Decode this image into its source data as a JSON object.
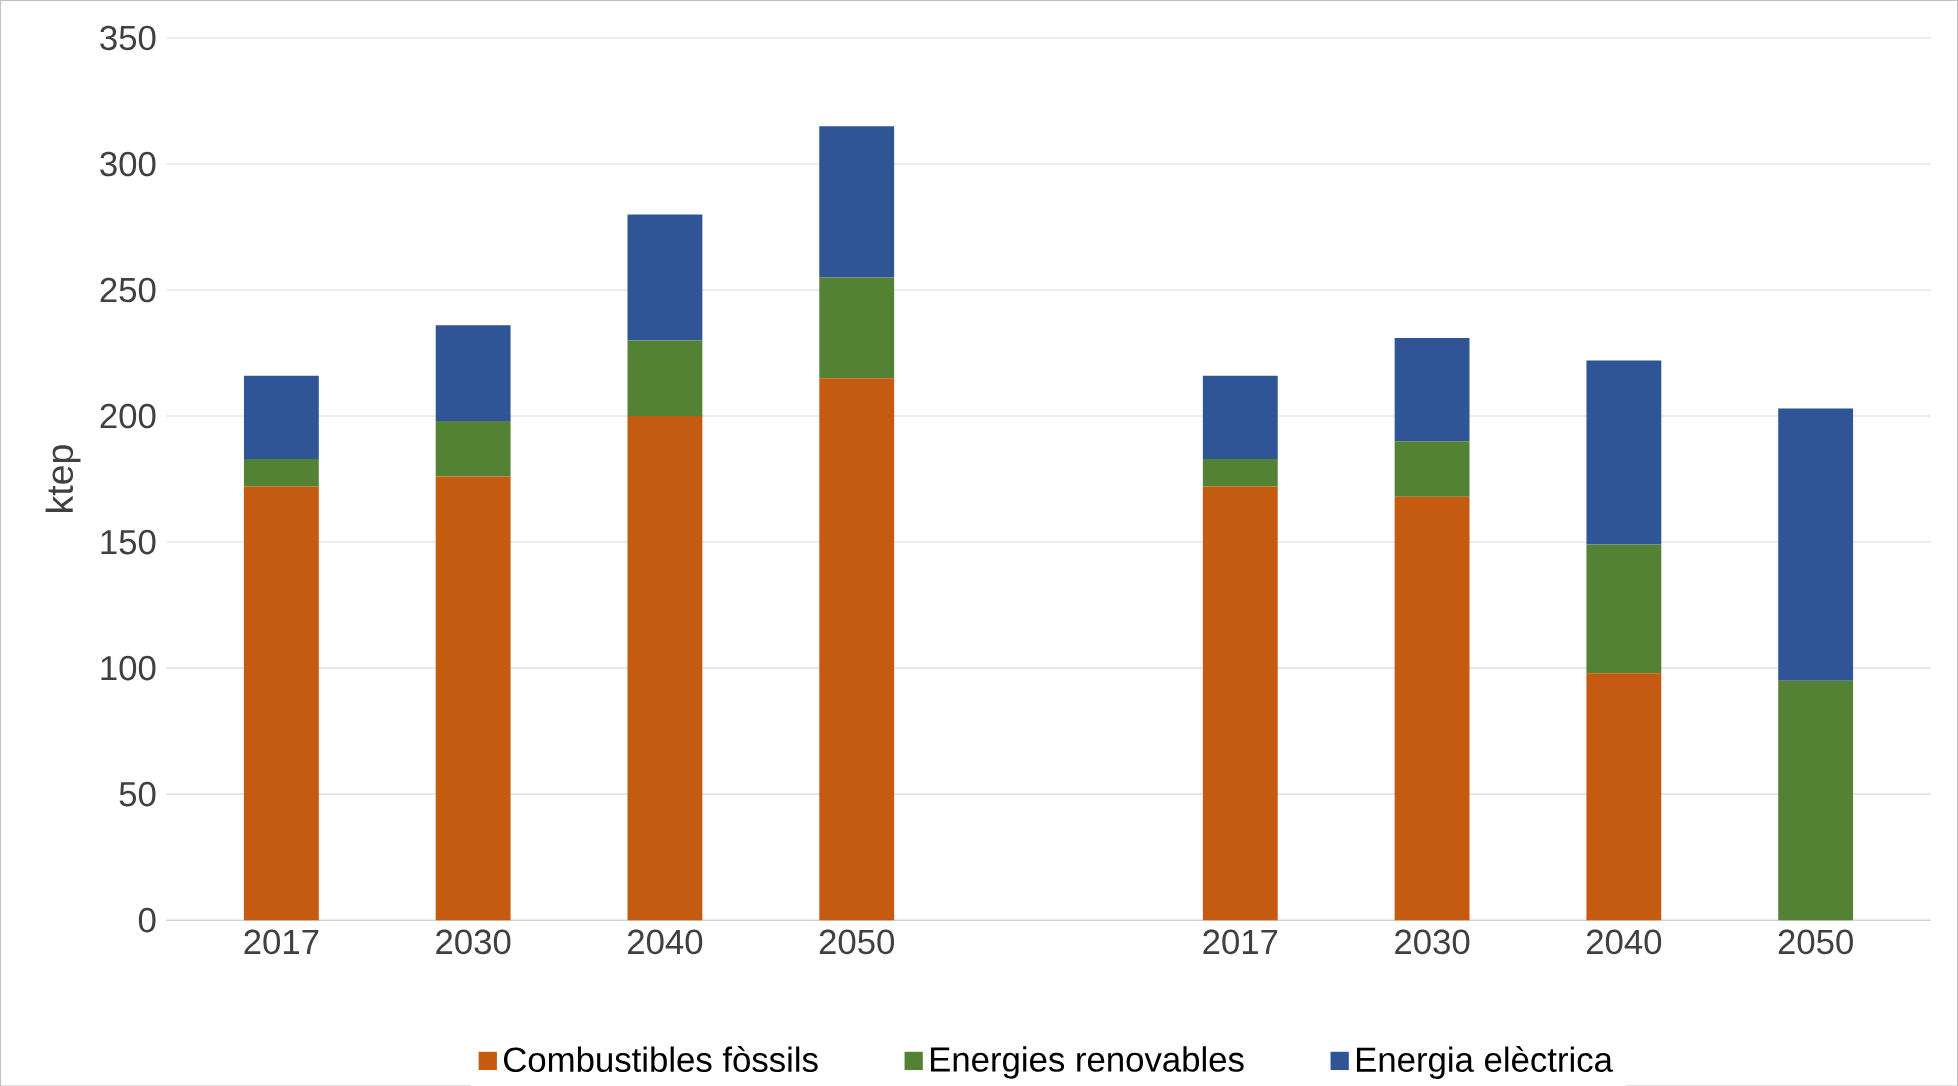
{
  "chart_data": {
    "type": "bar",
    "stacked": true,
    "ylabel": "ktep",
    "categories": [
      "2017",
      "2030",
      "2040",
      "2050",
      null,
      "2017",
      "2030",
      "2040",
      "2050"
    ],
    "series": [
      {
        "name": "Combustibles fòssils",
        "color": "#c55a11",
        "values": [
          172,
          176,
          200,
          215,
          null,
          172,
          168,
          98,
          0
        ]
      },
      {
        "name": "Energies renovables",
        "color": "#548235",
        "values": [
          11,
          22,
          30,
          40,
          null,
          11,
          22,
          51,
          95
        ]
      },
      {
        "name": "Energia elèctrica",
        "color": "#2f5597",
        "values": [
          33,
          38,
          50,
          60,
          null,
          33,
          41,
          73,
          108
        ]
      }
    ],
    "ylim": [
      0,
      350
    ],
    "yticks": [
      0,
      50,
      100,
      150,
      200,
      250,
      300,
      350
    ],
    "grid": "y",
    "legend": "bottom"
  }
}
